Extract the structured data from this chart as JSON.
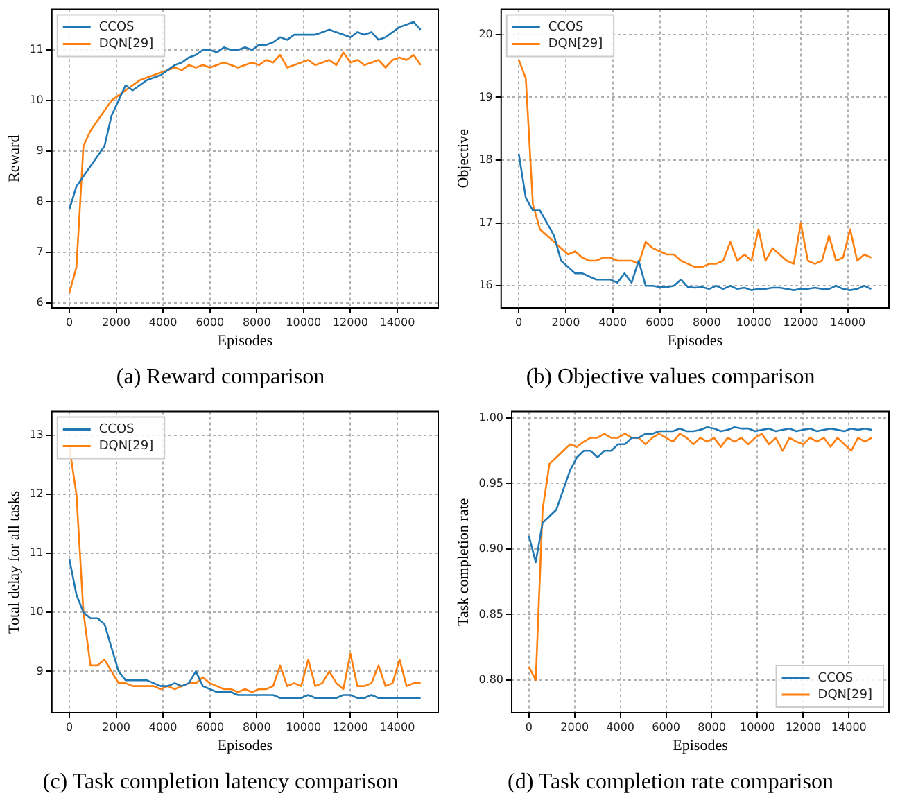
{
  "chart_data": [
    {
      "type": "line",
      "title": "(a) Reward comparison",
      "xlabel": "Episodes",
      "ylabel": "Reward",
      "x": [
        0,
        300,
        600,
        900,
        1200,
        1500,
        1800,
        2100,
        2400,
        2700,
        3000,
        3300,
        3600,
        3900,
        4200,
        4500,
        4800,
        5100,
        5400,
        5700,
        6000,
        6300,
        6600,
        6900,
        7200,
        7500,
        7800,
        8100,
        8400,
        8700,
        9000,
        9300,
        9600,
        9900,
        10200,
        10500,
        10800,
        11100,
        11400,
        11700,
        12000,
        12300,
        12600,
        12900,
        13200,
        13500,
        13800,
        14100,
        14400,
        14700,
        15000
      ],
      "series": [
        {
          "name": "CCOS",
          "color": "#1f77b4",
          "values": [
            7.85,
            8.3,
            8.5,
            8.7,
            8.9,
            9.1,
            9.7,
            10.0,
            10.3,
            10.2,
            10.3,
            10.4,
            10.45,
            10.5,
            10.6,
            10.7,
            10.75,
            10.85,
            10.9,
            11.0,
            11.0,
            10.95,
            11.05,
            11.0,
            11.0,
            11.05,
            11.0,
            11.1,
            11.1,
            11.15,
            11.25,
            11.2,
            11.3,
            11.3,
            11.3,
            11.3,
            11.35,
            11.4,
            11.35,
            11.3,
            11.25,
            11.35,
            11.3,
            11.35,
            11.2,
            11.25,
            11.35,
            11.45,
            11.5,
            11.55,
            11.4
          ]
        },
        {
          "name": "DQN[29]",
          "color": "#ff7f0e",
          "values": [
            6.2,
            6.7,
            9.1,
            9.4,
            9.6,
            9.8,
            10.0,
            10.1,
            10.2,
            10.3,
            10.4,
            10.45,
            10.5,
            10.55,
            10.6,
            10.65,
            10.6,
            10.7,
            10.65,
            10.7,
            10.65,
            10.7,
            10.75,
            10.7,
            10.65,
            10.7,
            10.75,
            10.7,
            10.8,
            10.75,
            10.9,
            10.65,
            10.7,
            10.75,
            10.8,
            10.7,
            10.75,
            10.8,
            10.7,
            10.95,
            10.75,
            10.8,
            10.7,
            10.75,
            10.8,
            10.65,
            10.8,
            10.85,
            10.8,
            10.9,
            10.7
          ]
        }
      ],
      "xlim": [
        -750,
        15750
      ],
      "xticks": [
        0,
        2000,
        4000,
        6000,
        8000,
        10000,
        12000,
        14000
      ],
      "ylim": [
        5.9,
        11.8
      ],
      "yticks": [
        6,
        7,
        8,
        9,
        10,
        11
      ],
      "grid": true,
      "legend": "top left",
      "line_style": "solid"
    },
    {
      "type": "line",
      "title": "(b) Objective values comparison",
      "xlabel": "Episodes",
      "ylabel": "Objective",
      "x": [
        0,
        300,
        600,
        900,
        1200,
        1500,
        1800,
        2100,
        2400,
        2700,
        3000,
        3300,
        3600,
        3900,
        4200,
        4500,
        4800,
        5100,
        5400,
        5700,
        6000,
        6300,
        6600,
        6900,
        7200,
        7500,
        7800,
        8100,
        8400,
        8700,
        9000,
        9300,
        9600,
        9900,
        10200,
        10500,
        10800,
        11100,
        11400,
        11700,
        12000,
        12300,
        12600,
        12900,
        13200,
        13500,
        13800,
        14100,
        14400,
        14700,
        15000
      ],
      "series": [
        {
          "name": "CCOS",
          "color": "#1f77b4",
          "values": [
            18.1,
            17.4,
            17.2,
            17.2,
            17.0,
            16.8,
            16.4,
            16.3,
            16.2,
            16.2,
            16.15,
            16.1,
            16.1,
            16.1,
            16.05,
            16.2,
            16.05,
            16.4,
            16.0,
            16.0,
            15.98,
            15.98,
            16.0,
            16.1,
            15.98,
            15.97,
            15.98,
            15.95,
            16.0,
            15.95,
            16.0,
            15.95,
            15.97,
            15.93,
            15.95,
            15.95,
            15.97,
            15.97,
            15.95,
            15.93,
            15.95,
            15.95,
            15.97,
            15.95,
            15.95,
            16.0,
            15.95,
            15.93,
            15.95,
            16.0,
            15.95
          ]
        },
        {
          "name": "DQN[29]",
          "color": "#ff7f0e",
          "values": [
            19.6,
            19.3,
            17.3,
            16.9,
            16.8,
            16.7,
            16.6,
            16.5,
            16.55,
            16.45,
            16.4,
            16.4,
            16.45,
            16.45,
            16.4,
            16.4,
            16.4,
            16.35,
            16.7,
            16.6,
            16.55,
            16.5,
            16.5,
            16.4,
            16.35,
            16.3,
            16.3,
            16.35,
            16.35,
            16.4,
            16.7,
            16.4,
            16.5,
            16.4,
            16.9,
            16.4,
            16.6,
            16.5,
            16.4,
            16.35,
            17.0,
            16.4,
            16.35,
            16.4,
            16.8,
            16.4,
            16.45,
            16.9,
            16.4,
            16.5,
            16.45
          ]
        }
      ],
      "xlim": [
        -750,
        15750
      ],
      "xticks": [
        0,
        2000,
        4000,
        6000,
        8000,
        10000,
        12000,
        14000
      ],
      "ylim": [
        15.65,
        20.4
      ],
      "yticks": [
        16,
        17,
        18,
        19,
        20
      ],
      "grid": true,
      "legend": "top left",
      "line_style": "solid"
    },
    {
      "type": "line",
      "title": "(c) Task completion latency comparison",
      "xlabel": "Episodes",
      "ylabel": "Total delay for all tasks",
      "x": [
        0,
        300,
        600,
        900,
        1200,
        1500,
        1800,
        2100,
        2400,
        2700,
        3000,
        3300,
        3600,
        3900,
        4200,
        4500,
        4800,
        5100,
        5400,
        5700,
        6000,
        6300,
        6600,
        6900,
        7200,
        7500,
        7800,
        8100,
        8400,
        8700,
        9000,
        9300,
        9600,
        9900,
        10200,
        10500,
        10800,
        11100,
        11400,
        11700,
        12000,
        12300,
        12600,
        12900,
        13200,
        13500,
        13800,
        14100,
        14400,
        14700,
        15000
      ],
      "series": [
        {
          "name": "CCOS",
          "color": "#1f77b4",
          "values": [
            10.9,
            10.3,
            10.0,
            9.9,
            9.9,
            9.8,
            9.4,
            9.0,
            8.85,
            8.85,
            8.85,
            8.85,
            8.8,
            8.75,
            8.75,
            8.8,
            8.75,
            8.8,
            9.0,
            8.75,
            8.7,
            8.65,
            8.65,
            8.65,
            8.6,
            8.6,
            8.6,
            8.6,
            8.6,
            8.6,
            8.55,
            8.55,
            8.55,
            8.55,
            8.6,
            8.55,
            8.55,
            8.55,
            8.55,
            8.6,
            8.6,
            8.55,
            8.55,
            8.6,
            8.55,
            8.55,
            8.55,
            8.55,
            8.55,
            8.55,
            8.55
          ]
        },
        {
          "name": "DQN[29]",
          "color": "#ff7f0e",
          "values": [
            12.8,
            12.0,
            10.0,
            9.1,
            9.1,
            9.2,
            9.0,
            8.8,
            8.8,
            8.75,
            8.75,
            8.75,
            8.75,
            8.7,
            8.75,
            8.7,
            8.75,
            8.8,
            8.8,
            8.9,
            8.8,
            8.75,
            8.7,
            8.7,
            8.65,
            8.7,
            8.65,
            8.7,
            8.7,
            8.75,
            9.1,
            8.75,
            8.8,
            8.75,
            9.2,
            8.75,
            8.8,
            9.0,
            8.8,
            8.7,
            9.3,
            8.75,
            8.75,
            8.8,
            9.1,
            8.75,
            8.8,
            9.2,
            8.75,
            8.8,
            8.8
          ]
        }
      ],
      "xlim": [
        -750,
        15750
      ],
      "xticks": [
        0,
        2000,
        4000,
        6000,
        8000,
        10000,
        12000,
        14000
      ],
      "ylim": [
        8.3,
        13.4
      ],
      "yticks": [
        9,
        10,
        11,
        12,
        13
      ],
      "grid": true,
      "legend": "top left",
      "line_style": "solid"
    },
    {
      "type": "line",
      "title": "(d) Task completion rate comparison",
      "xlabel": "Episodes",
      "ylabel": "Task completion rate",
      "x": [
        0,
        300,
        600,
        900,
        1200,
        1500,
        1800,
        2100,
        2400,
        2700,
        3000,
        3300,
        3600,
        3900,
        4200,
        4500,
        4800,
        5100,
        5400,
        5700,
        6000,
        6300,
        6600,
        6900,
        7200,
        7500,
        7800,
        8100,
        8400,
        8700,
        9000,
        9300,
        9600,
        9900,
        10200,
        10500,
        10800,
        11100,
        11400,
        11700,
        12000,
        12300,
        12600,
        12900,
        13200,
        13500,
        13800,
        14100,
        14400,
        14700,
        15000
      ],
      "series": [
        {
          "name": "CCOS",
          "color": "#1f77b4",
          "values": [
            0.91,
            0.89,
            0.92,
            0.925,
            0.93,
            0.945,
            0.96,
            0.97,
            0.975,
            0.975,
            0.97,
            0.975,
            0.975,
            0.98,
            0.98,
            0.985,
            0.985,
            0.988,
            0.988,
            0.99,
            0.99,
            0.99,
            0.992,
            0.99,
            0.99,
            0.991,
            0.993,
            0.992,
            0.99,
            0.991,
            0.993,
            0.992,
            0.992,
            0.99,
            0.991,
            0.992,
            0.99,
            0.991,
            0.992,
            0.99,
            0.991,
            0.992,
            0.99,
            0.991,
            0.992,
            0.991,
            0.99,
            0.992,
            0.991,
            0.992,
            0.991
          ]
        },
        {
          "name": "DQN[29]",
          "color": "#ff7f0e",
          "values": [
            0.81,
            0.8,
            0.93,
            0.965,
            0.97,
            0.975,
            0.98,
            0.978,
            0.982,
            0.985,
            0.985,
            0.988,
            0.985,
            0.985,
            0.988,
            0.985,
            0.985,
            0.98,
            0.985,
            0.988,
            0.985,
            0.982,
            0.988,
            0.985,
            0.98,
            0.985,
            0.982,
            0.985,
            0.978,
            0.985,
            0.982,
            0.985,
            0.98,
            0.985,
            0.988,
            0.98,
            0.985,
            0.975,
            0.985,
            0.982,
            0.98,
            0.985,
            0.982,
            0.985,
            0.978,
            0.985,
            0.98,
            0.975,
            0.985,
            0.982,
            0.985
          ]
        }
      ],
      "xlim": [
        -750,
        15750
      ],
      "xticks": [
        0,
        2000,
        4000,
        6000,
        8000,
        10000,
        12000,
        14000
      ],
      "ylim": [
        0.775,
        1.005
      ],
      "yticks": [
        {
          "value": 0.8,
          "label": "0.80"
        },
        {
          "value": 0.85,
          "label": "0.85"
        },
        {
          "value": 0.9,
          "label": "0.90"
        },
        {
          "value": 0.95,
          "label": "0.95"
        },
        {
          "value": 1,
          "label": "1.00"
        }
      ],
      "grid": true,
      "legend": "bottom right",
      "line_style": "solid"
    }
  ]
}
